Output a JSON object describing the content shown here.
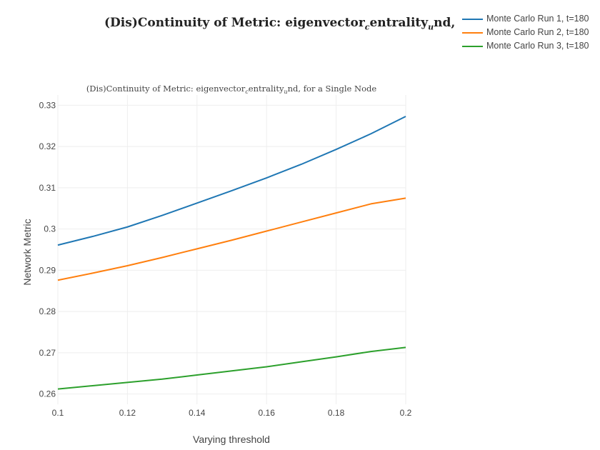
{
  "figure": {
    "title": "(Dis)Continuity of Metric: eigenvector_centrality_und, for a Single Node",
    "title_parts": {
      "a": "(Dis)Continuity of Metric: eigenvector",
      "sub1": "c",
      "b": "entrality",
      "sub2": "u",
      "c": "nd, for a Single Node"
    }
  },
  "legend": {
    "items": [
      {
        "label": "Monte Carlo Run 1, t=180",
        "color": "#1f77b4"
      },
      {
        "label": "Monte Carlo Run 2, t=180",
        "color": "#ff7f0e"
      },
      {
        "label": "Monte Carlo Run 3, t=180",
        "color": "#2ca02c"
      }
    ]
  },
  "chart_data": {
    "type": "line",
    "title": "(Dis)Continuity of Metric: eigenvector_centrality_und, for a Single Node",
    "xlabel": "Varying threshold",
    "ylabel": "Network Metric",
    "xlim": [
      0.1,
      0.2
    ],
    "ylim": [
      0.2575,
      0.3325
    ],
    "xticks": [
      0.1,
      0.12,
      0.14,
      0.16,
      0.18,
      0.2
    ],
    "xtick_labels": [
      "0.1",
      "0.12",
      "0.14",
      "0.16",
      "0.18",
      "0.2"
    ],
    "yticks": [
      0.26,
      0.27,
      0.28,
      0.29,
      0.3,
      0.31,
      0.32,
      0.33
    ],
    "ytick_labels": [
      "0.26",
      "0.27",
      "0.28",
      "0.29",
      "0.3",
      "0.31",
      "0.32",
      "0.33"
    ],
    "grid": true,
    "legend_position": "top-right",
    "x": [
      0.1,
      0.11,
      0.12,
      0.13,
      0.14,
      0.15,
      0.16,
      0.17,
      0.18,
      0.19,
      0.2
    ],
    "series": [
      {
        "name": "Monte Carlo Run 1, t=180",
        "color": "#1f77b4",
        "values": [
          0.2961,
          0.2982,
          0.3005,
          0.3033,
          0.3063,
          0.3093,
          0.3124,
          0.3157,
          0.3193,
          0.3231,
          0.3273
        ]
      },
      {
        "name": "Monte Carlo Run 2, t=180",
        "color": "#ff7f0e",
        "values": [
          0.2876,
          0.2893,
          0.2911,
          0.2931,
          0.2952,
          0.2973,
          0.2995,
          0.3017,
          0.3039,
          0.3061,
          0.3075
        ]
      },
      {
        "name": "Monte Carlo Run 3, t=180",
        "color": "#2ca02c",
        "values": [
          0.2612,
          0.262,
          0.2628,
          0.2636,
          0.2646,
          0.2656,
          0.2666,
          0.2678,
          0.269,
          0.2703,
          0.2713
        ]
      }
    ]
  }
}
